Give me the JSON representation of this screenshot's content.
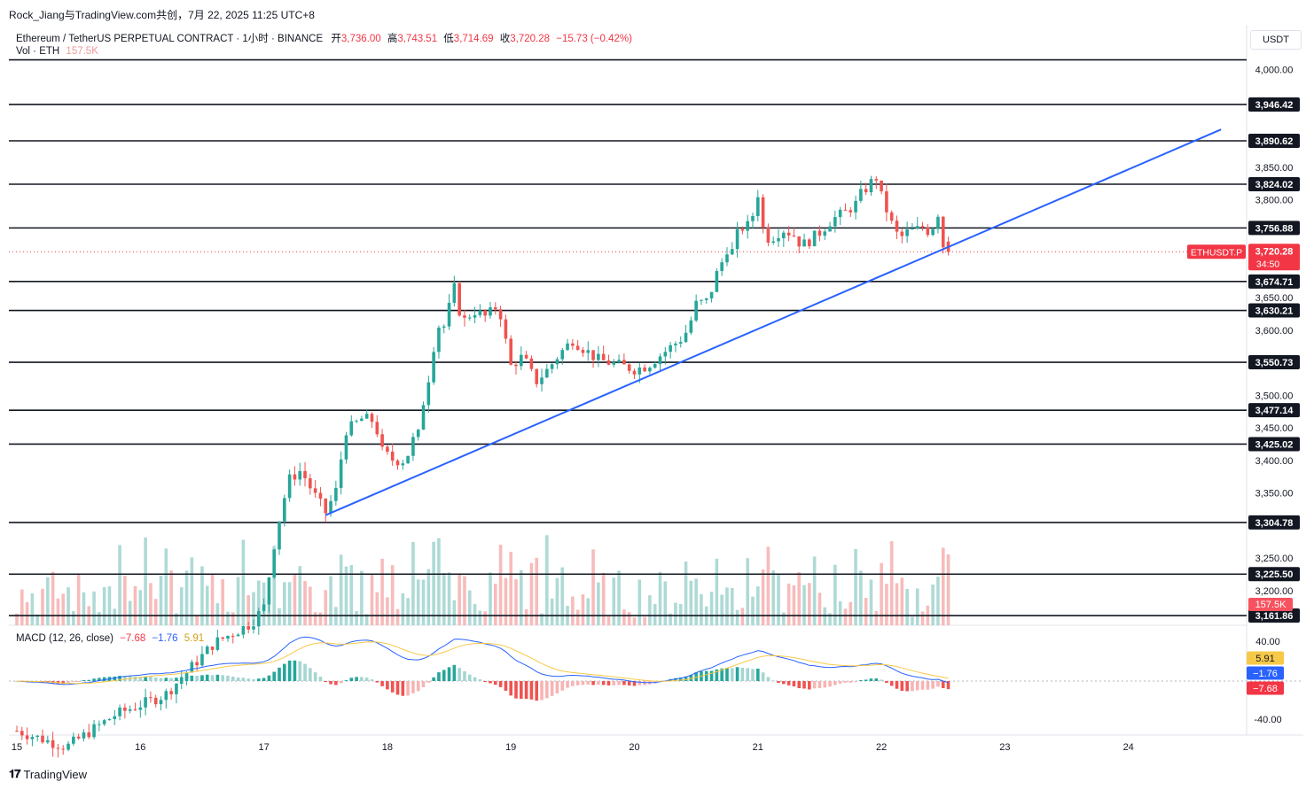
{
  "caption": "Rock_Jiang与TradingView.com共创，7月 22, 2025 11:25 UTC+8",
  "legend": {
    "symbol_line": "Ethereum / TetherUS PERPETUAL CONTRACT · 1小时 · BINANCE",
    "open_label": "开",
    "open": "3,736.00",
    "high_label": "高",
    "high": "3,743.51",
    "low_label": "低",
    "low": "3,714.69",
    "close_label": "收",
    "close": "3,720.28",
    "change": "−15.73 (−0.42%)",
    "vol_label": "Vol · ETH",
    "vol_value": "157.5K",
    "macd_label": "MACD (12, 26, close)",
    "macd_hist": "−7.68",
    "macd_line": "−1.76",
    "macd_signal": "5.91"
  },
  "currency": "USDT",
  "footer_brand": "TradingView",
  "colors": {
    "up": "#26a69a",
    "down": "#ef5350",
    "trendline": "#2962ff",
    "macd_line": "#2962ff",
    "signal_line": "#f7c948",
    "level_line": "#131722"
  },
  "chart_data": {
    "type": "candlestick",
    "symbol": "ETHUSDT.P",
    "interval": "1小时",
    "x_ticks": [
      "15",
      "16",
      "17",
      "18",
      "19",
      "20",
      "21",
      "22",
      "23",
      "24"
    ],
    "price_ticks": [
      "4,000.00",
      "3,850.00",
      "3,800.00",
      "3,650.00",
      "3,600.00",
      "3,500.00",
      "3,450.00",
      "3,400.00",
      "3,350.00",
      "3,250.00",
      "3,200.00"
    ],
    "price_range": [
      3160,
      4020
    ],
    "horizontal_levels": [
      {
        "price": 4015,
        "label": ""
      },
      {
        "price": 3946.42,
        "label": "3,946.42"
      },
      {
        "price": 3890.62,
        "label": "3,890.62"
      },
      {
        "price": 3824.02,
        "label": "3,824.02"
      },
      {
        "price": 3756.88,
        "label": "3,756.88"
      },
      {
        "price": 3674.71,
        "label": "3,674.71"
      },
      {
        "price": 3630.21,
        "label": "3,630.21"
      },
      {
        "price": 3550.73,
        "label": "3,550.73"
      },
      {
        "price": 3477.14,
        "label": "3,477.14"
      },
      {
        "price": 3425.02,
        "label": "3,425.02"
      },
      {
        "price": 3304.78,
        "label": "3,304.78"
      },
      {
        "price": 3225.5,
        "label": "3,225.50"
      },
      {
        "price": 3161.86,
        "label": "3,161.86"
      }
    ],
    "last_price": {
      "symbol": "ETHUSDT.P",
      "price": 3720.28,
      "label": "3,720.28",
      "countdown": "34:50"
    },
    "volume_last": "157.5K",
    "trendline": {
      "from": {
        "day": 17.5,
        "price": 3316
      },
      "to": {
        "day": 24.75,
        "price": 3908
      }
    },
    "close_path": [
      [
        15.0,
        2985
      ],
      [
        15.4,
        2960
      ],
      [
        15.8,
        3010
      ],
      [
        16.2,
        3040
      ],
      [
        16.6,
        3120
      ],
      [
        16.9,
        3150
      ],
      [
        17.0,
        3175
      ],
      [
        17.1,
        3290
      ],
      [
        17.2,
        3370
      ],
      [
        17.3,
        3385
      ],
      [
        17.4,
        3350
      ],
      [
        17.5,
        3320
      ],
      [
        17.6,
        3360
      ],
      [
        17.65,
        3445
      ],
      [
        17.7,
        3450
      ],
      [
        17.8,
        3465
      ],
      [
        17.9,
        3460
      ],
      [
        17.95,
        3415
      ],
      [
        18.05,
        3400
      ],
      [
        18.15,
        3400
      ],
      [
        18.2,
        3430
      ],
      [
        18.25,
        3440
      ],
      [
        18.3,
        3500
      ],
      [
        18.35,
        3540
      ],
      [
        18.4,
        3610
      ],
      [
        18.45,
        3600
      ],
      [
        18.55,
        3670
      ],
      [
        18.6,
        3610
      ],
      [
        18.7,
        3630
      ],
      [
        18.8,
        3620
      ],
      [
        18.9,
        3640
      ],
      [
        18.95,
        3590
      ],
      [
        19.0,
        3545
      ],
      [
        19.1,
        3560
      ],
      [
        19.2,
        3520
      ],
      [
        19.3,
        3540
      ],
      [
        19.4,
        3565
      ],
      [
        19.5,
        3585
      ],
      [
        19.6,
        3570
      ],
      [
        19.7,
        3555
      ],
      [
        19.8,
        3550
      ],
      [
        19.9,
        3545
      ],
      [
        20.0,
        3540
      ],
      [
        20.1,
        3545
      ],
      [
        20.2,
        3560
      ],
      [
        20.3,
        3575
      ],
      [
        20.4,
        3590
      ],
      [
        20.45,
        3610
      ],
      [
        20.5,
        3640
      ],
      [
        20.6,
        3645
      ],
      [
        20.65,
        3680
      ],
      [
        20.7,
        3700
      ],
      [
        20.75,
        3725
      ],
      [
        20.8,
        3720
      ],
      [
        20.85,
        3760
      ],
      [
        20.9,
        3755
      ],
      [
        20.95,
        3770
      ],
      [
        21.0,
        3810
      ],
      [
        21.05,
        3745
      ],
      [
        21.1,
        3740
      ],
      [
        21.2,
        3755
      ],
      [
        21.3,
        3745
      ],
      [
        21.35,
        3730
      ],
      [
        21.4,
        3735
      ],
      [
        21.5,
        3750
      ],
      [
        21.6,
        3770
      ],
      [
        21.7,
        3780
      ],
      [
        21.8,
        3795
      ],
      [
        21.85,
        3815
      ],
      [
        21.9,
        3820
      ],
      [
        21.95,
        3840
      ],
      [
        22.0,
        3805
      ],
      [
        22.05,
        3780
      ],
      [
        22.1,
        3755
      ],
      [
        22.15,
        3740
      ],
      [
        22.2,
        3750
      ],
      [
        22.3,
        3755
      ],
      [
        22.35,
        3760
      ],
      [
        22.4,
        3745
      ],
      [
        22.45,
        3790
      ],
      [
        22.5,
        3730
      ],
      [
        22.55,
        3720.28
      ]
    ]
  }
}
